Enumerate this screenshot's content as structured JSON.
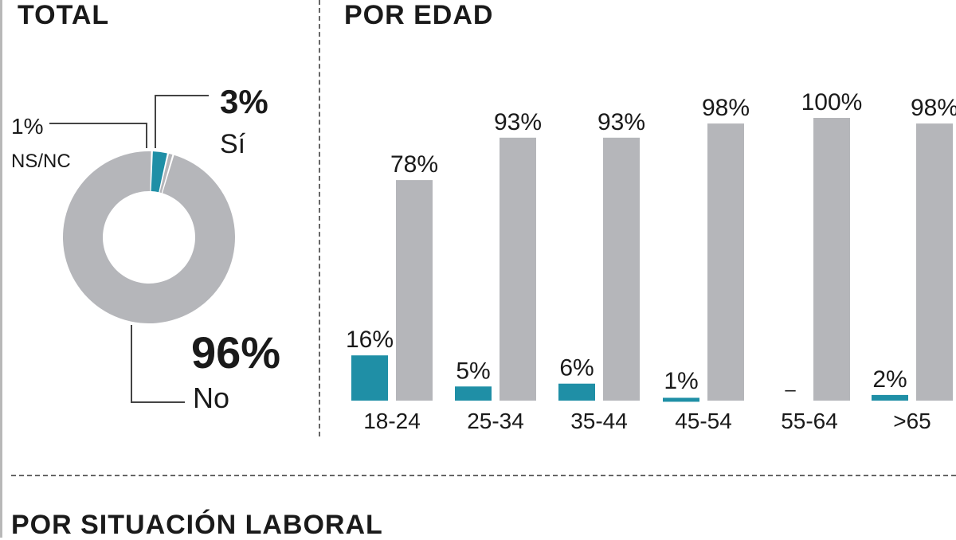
{
  "headings": {
    "total": "TOTAL",
    "age": "POR EDAD",
    "employment": "POR SITUACIÓN LABORAL"
  },
  "colors": {
    "yes": "#1f8fa6",
    "no": "#b5b6ba",
    "nsnc": "#b5b6ba",
    "text": "#1a1a1a"
  },
  "chart_data": [
    {
      "type": "pie",
      "title": "TOTAL",
      "donut": true,
      "slices": [
        {
          "label": "Sí",
          "value": 3,
          "value_label": "3%"
        },
        {
          "label": "NS/NC",
          "value": 1,
          "value_label": "1%"
        },
        {
          "label": "No",
          "value": 96,
          "value_label": "96%"
        }
      ]
    },
    {
      "type": "bar",
      "title": "POR EDAD",
      "categories": [
        "18-24",
        "25-34",
        "35-44",
        "45-54",
        "55-64",
        ">65"
      ],
      "series": [
        {
          "name": "Sí",
          "values": [
            16,
            5,
            6,
            1,
            0,
            2
          ],
          "labels": [
            "16%",
            "5%",
            "6%",
            "1%",
            "–",
            "2%"
          ]
        },
        {
          "name": "No",
          "values": [
            78,
            93,
            93,
            98,
            100,
            98
          ],
          "labels": [
            "78%",
            "93%",
            "93%",
            "98%",
            "100%",
            "98%"
          ]
        }
      ],
      "ylim": [
        0,
        100
      ]
    }
  ]
}
